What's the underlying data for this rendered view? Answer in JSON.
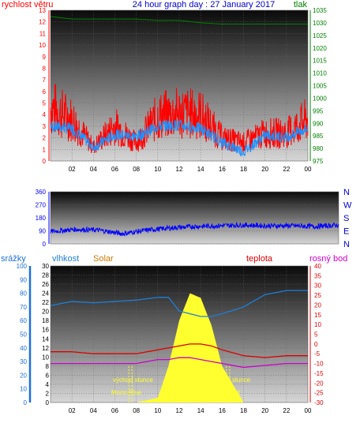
{
  "header": {
    "title": "24 hour graph day : 27 January 2017",
    "wind_label": "rychlost větru",
    "pressure_label": "tlak"
  },
  "lower": {
    "rain_label": "srážky",
    "humidity_label": "vlhkost",
    "solar_label": "Solar",
    "temp_label": "teplota",
    "dew_label": "rosný bod",
    "sunrise_label": "východ slunce",
    "sunset_label": "západ slunce",
    "moonrise_label": "Moon Rise",
    "moonset_label": "MoonSet"
  },
  "colors": {
    "wind": "#ff0000",
    "wind_avg": "#1e90ff",
    "pressure": "#008000",
    "direction": "#0000ff",
    "temperature": "#dd0000",
    "dew": "#cc00cc",
    "humidity": "#1e7fd8",
    "solar": "#ffff30",
    "title": "#0000cc",
    "rain_axis": "#1e6fd8",
    "solar_label": "#cc7a00"
  },
  "chart_data": [
    {
      "type": "line",
      "title": "24 hour graph day : 27 January 2017",
      "x_ticks": [
        "02",
        "04",
        "06",
        "08",
        "10",
        "12",
        "14",
        "16",
        "18",
        "20",
        "22",
        "00"
      ],
      "y_left_label": "rychlost větru",
      "y_left_ticks": [
        0,
        1,
        2,
        3,
        4,
        5,
        6,
        7,
        8,
        9,
        10,
        11,
        12,
        13
      ],
      "y_left_range": [
        0,
        13
      ],
      "y_right_label": "tlak",
      "y_right_ticks": [
        975,
        980,
        985,
        990,
        995,
        1000,
        1005,
        1010,
        1015,
        1020,
        1025,
        1030,
        1035
      ],
      "y_right_range": [
        975,
        1035
      ],
      "x_hours": [
        0,
        2,
        4,
        6,
        8,
        10,
        12,
        14,
        16,
        18,
        20,
        22,
        24
      ],
      "series": [
        {
          "values": [
            5.8,
            4.5,
            1.5,
            3.8,
            2.0,
            4.8,
            5.2,
            5.0,
            2.5,
            2.0,
            3.0,
            3.0,
            4.5
          ]
        },
        {
          "values": [
            3.0,
            2.8,
            1.2,
            2.3,
            2.1,
            3.0,
            3.1,
            2.8,
            1.6,
            0.8,
            2.2,
            2.1,
            2.8
          ]
        },
        {
          "values": [
            1032.5,
            1031.5,
            1031.5,
            1031.5,
            1031.5,
            1031,
            1031,
            1030,
            1029.5,
            1029.5,
            1029.5,
            1029.5,
            1029.5
          ]
        }
      ]
    },
    {
      "type": "line",
      "x_ticks": [],
      "y_ticks": [
        0,
        90,
        180,
        270,
        360
      ],
      "y_range": [
        0,
        360
      ],
      "compass_labels": [
        "N",
        "W",
        "S",
        "E",
        "N"
      ],
      "x_hours": [
        0,
        2,
        4,
        6,
        8,
        10,
        12,
        14,
        16,
        18,
        20,
        22,
        24
      ],
      "series": [
        {
          "values": [
            85,
            100,
            95,
            70,
            95,
            110,
            120,
            125,
            130,
            125,
            125,
            120,
            130
          ]
        }
      ]
    },
    {
      "type": "line",
      "x_ticks": [
        "02",
        "04",
        "06",
        "08",
        "10",
        "12",
        "14",
        "16",
        "18",
        "20",
        "22",
        "00"
      ],
      "rain_axis_label": "srážky",
      "rain_ticks": [
        0,
        10,
        20,
        30,
        40,
        50,
        60,
        70,
        80,
        90,
        100
      ],
      "rain_range": [
        0,
        100
      ],
      "hum_ticks": [
        0,
        2,
        4,
        6,
        8,
        10,
        12,
        14,
        16,
        18,
        20,
        22,
        24,
        26,
        28,
        30
      ],
      "hum_range": [
        0,
        30
      ],
      "temp_ticks": [
        -30,
        -25,
        -20,
        -15,
        -10,
        -5,
        0,
        5,
        10,
        15,
        20,
        25,
        30,
        35,
        40
      ],
      "temp_range": [
        -30,
        40
      ],
      "x_hours": [
        0,
        2,
        4,
        6,
        8,
        10,
        11,
        12,
        13,
        14,
        15,
        16,
        18,
        20,
        22,
        24
      ],
      "series": [
        {
          "name": "vlhkost",
          "values": [
            71,
            74,
            73,
            74,
            75,
            77,
            77,
            67,
            65,
            63,
            63,
            65,
            70,
            79,
            82,
            82
          ]
        },
        {
          "name": "teplota",
          "values": [
            -4,
            -4,
            -5,
            -5,
            -5,
            -3,
            -2,
            -1,
            0,
            0,
            -1,
            -3,
            -6,
            -7,
            -6,
            -6
          ]
        },
        {
          "name": "rosný bod",
          "values": [
            -10,
            -10,
            -10,
            -10,
            -10,
            -8,
            -8,
            -7,
            -7,
            -8,
            -9,
            -10,
            -12,
            -11,
            -10,
            -10
          ]
        },
        {
          "name": "Solar",
          "values": [
            0,
            0,
            0,
            0,
            0,
            1,
            8,
            18,
            24,
            23,
            17,
            8,
            0,
            0,
            0,
            0
          ]
        }
      ],
      "events_hour": {
        "moon_rise": 7.3,
        "sunrise": 7.6,
        "sunset": 16.4,
        "moon_set": 16.7
      }
    }
  ]
}
